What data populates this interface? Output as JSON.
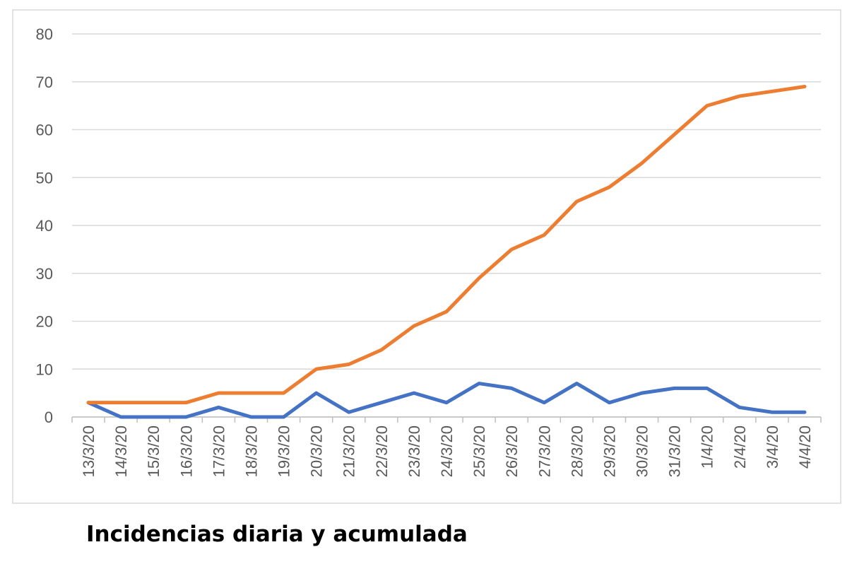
{
  "chart_data": {
    "type": "line",
    "title": "Incidencias diaria y acumulada",
    "categories": [
      "13/3/20",
      "14/3/20",
      "15/3/20",
      "16/3/20",
      "17/3/20",
      "18/3/20",
      "19/3/20",
      "20/3/20",
      "21/3/20",
      "22/3/20",
      "23/3/20",
      "24/3/20",
      "25/3/20",
      "26/3/20",
      "27/3/20",
      "28/3/20",
      "29/3/20",
      "30/3/20",
      "31/3/20",
      "1/4/20",
      "2/4/20",
      "3/4/20",
      "4/4/20"
    ],
    "series": [
      {
        "color": "#4472c4",
        "values": [
          3,
          0,
          0,
          0,
          2,
          0,
          0,
          5,
          1,
          3,
          5,
          3,
          7,
          6,
          3,
          7,
          3,
          5,
          6,
          6,
          2,
          1,
          1
        ]
      },
      {
        "color": "#ed7d31",
        "values": [
          3,
          3,
          3,
          3,
          5,
          5,
          5,
          10,
          11,
          14,
          19,
          22,
          29,
          35,
          38,
          45,
          48,
          53,
          59,
          65,
          67,
          68,
          69
        ]
      }
    ],
    "ylim": [
      0,
      80
    ],
    "yticks": [
      0,
      10,
      20,
      30,
      40,
      50,
      60,
      70,
      80
    ],
    "grid": true
  }
}
